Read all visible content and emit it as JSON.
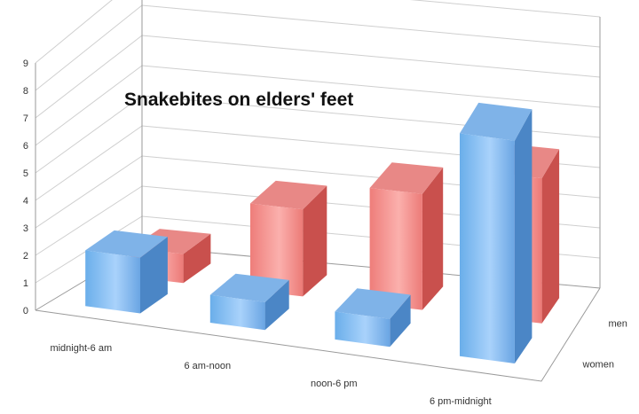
{
  "chart_data": {
    "type": "bar",
    "title": "Snakebites on elders' feet",
    "categories": [
      "midnight-6 am",
      "6 am-noon",
      "noon-6 pm",
      "6 pm-midnight"
    ],
    "series": [
      {
        "name": "women",
        "values": [
          2,
          1,
          1,
          8
        ]
      },
      {
        "name": "men",
        "values": [
          1,
          3,
          4,
          5
        ]
      }
    ],
    "ylim": [
      0,
      9
    ],
    "yticks": [
      "0",
      "1",
      "2",
      "3",
      "4",
      "5",
      "6",
      "7",
      "8",
      "9"
    ],
    "grid": true,
    "colors": {
      "women": "#5b9bd5",
      "men": "#e06666"
    }
  }
}
